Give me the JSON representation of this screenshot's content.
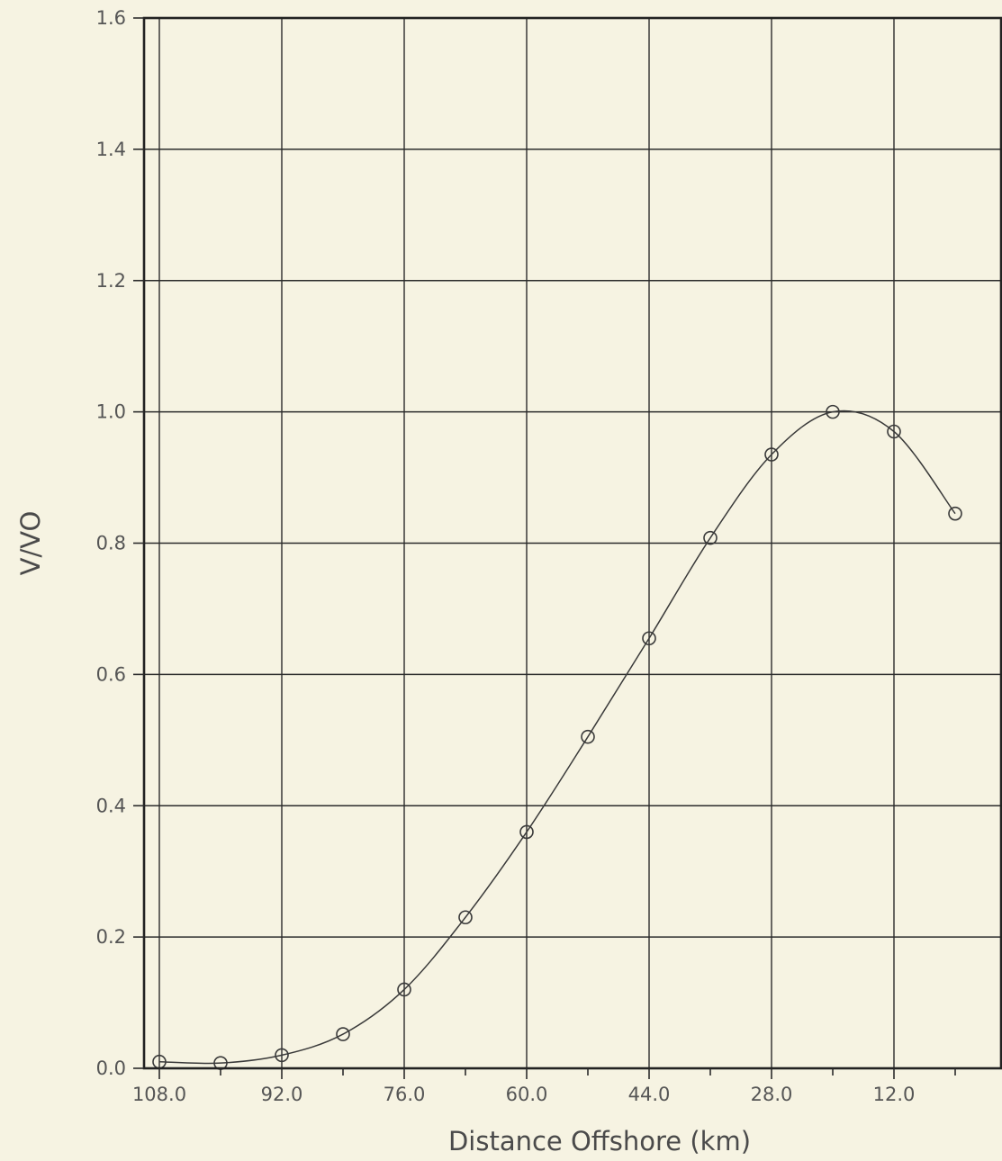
{
  "chart_data": {
    "type": "line",
    "xlabel": "Distance Offshore (km)",
    "ylabel": "V/VO",
    "xlim": [
      110,
      -2
    ],
    "ylim": [
      0,
      1.6
    ],
    "xticks": [
      108,
      92,
      76,
      60,
      44,
      28,
      12
    ],
    "xtick_labels": [
      "108.0",
      "92.0",
      "76.0",
      "60.0",
      "44.0",
      "28.0",
      "12.0"
    ],
    "yticks": [
      0,
      0.2,
      0.4,
      0.6,
      0.8,
      1.0,
      1.2,
      1.4,
      1.6
    ],
    "ytick_labels": [
      "0.0",
      "0.2",
      "0.4",
      "0.6",
      "0.8",
      "1.0",
      "1.2",
      "1.4",
      "1.6"
    ],
    "grid": true,
    "series": [
      {
        "marker": "open-circle",
        "x": [
          108,
          100,
          92,
          84,
          76,
          68,
          60,
          52,
          44,
          36,
          28,
          20,
          12,
          4
        ],
        "y": [
          0.01,
          0.008,
          0.02,
          0.052,
          0.12,
          0.23,
          0.36,
          0.505,
          0.655,
          0.808,
          0.935,
          1.0,
          0.97,
          0.845
        ]
      }
    ],
    "colors": {
      "background": "#f6f3e2",
      "ink": "#2b2b2b"
    }
  }
}
